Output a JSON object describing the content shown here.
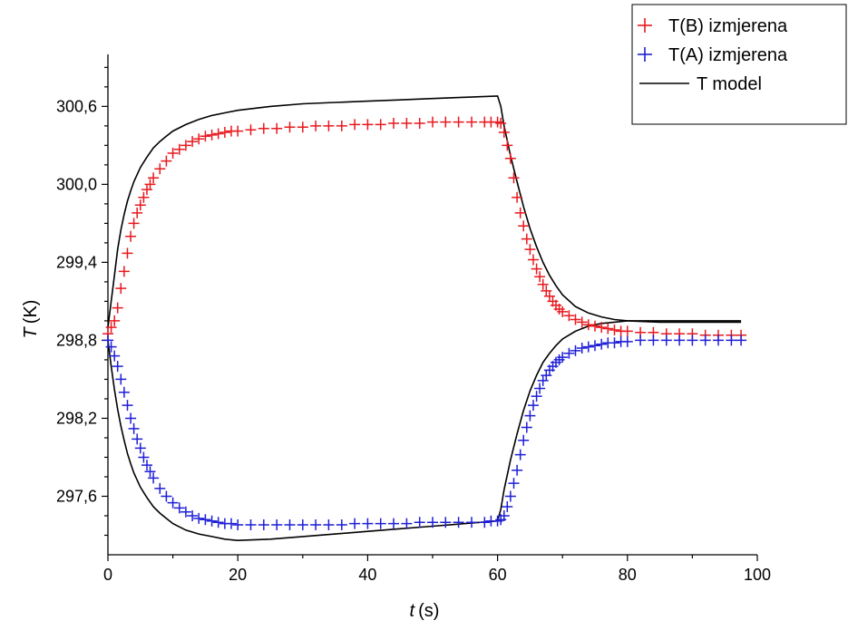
{
  "chart_data": {
    "type": "scatter",
    "title": "",
    "xlabel": {
      "symbol": "t",
      "unit": "(s)"
    },
    "ylabel": {
      "symbol": "T",
      "unit": "(K)"
    },
    "xlim": [
      0,
      100
    ],
    "ylim": [
      297.15,
      301.0
    ],
    "x_major_ticks": [
      0,
      20,
      40,
      60,
      80,
      100
    ],
    "x_tick_labels": [
      "0",
      "20",
      "40",
      "60",
      "80",
      "100"
    ],
    "y_major_ticks": [
      297.6,
      298.2,
      298.8,
      299.4,
      300.0,
      300.6
    ],
    "y_tick_labels": [
      "297,6",
      "298,2",
      "298,8",
      "299,4",
      "300,0",
      "300,6"
    ],
    "grid": false,
    "legend_position": "top-right",
    "series": [
      {
        "name": "T(B) izmjerena",
        "kind": "markers",
        "marker": "+",
        "color": "#e8191e",
        "x": [
          0.0,
          0.5,
          1.0,
          1.5,
          2.0,
          2.5,
          3.0,
          3.5,
          4.0,
          4.5,
          5.0,
          5.5,
          6.0,
          6.5,
          7.0,
          8.0,
          9.0,
          10.0,
          11.0,
          12.0,
          13.0,
          14.0,
          15.0,
          16.0,
          17.0,
          18.0,
          19.0,
          20.0,
          22.0,
          24.0,
          26.0,
          28.0,
          30.0,
          32.0,
          34.0,
          36.0,
          38.0,
          40.0,
          42.0,
          44.0,
          46.0,
          48.0,
          50.0,
          52.0,
          54.0,
          56.0,
          58.0,
          59.0,
          60.0,
          60.5,
          61.0,
          61.5,
          62.0,
          62.5,
          63.0,
          63.5,
          64.0,
          64.5,
          65.0,
          65.5,
          66.0,
          66.5,
          67.0,
          67.5,
          68.0,
          68.5,
          69.0,
          69.5,
          70.0,
          71.0,
          72.0,
          73.0,
          74.0,
          75.0,
          76.0,
          77.0,
          78.0,
          79.0,
          80.0,
          82.0,
          84.0,
          86.0,
          88.0,
          90.0,
          92.0,
          94.0,
          96.0,
          97.5
        ],
        "y": [
          298.85,
          298.9,
          298.95,
          299.05,
          299.2,
          299.33,
          299.47,
          299.6,
          299.7,
          299.78,
          299.84,
          299.9,
          299.96,
          300.0,
          300.05,
          300.12,
          300.18,
          300.24,
          300.27,
          300.3,
          300.33,
          300.35,
          300.37,
          300.38,
          300.39,
          300.4,
          300.41,
          300.41,
          300.42,
          300.43,
          300.43,
          300.44,
          300.44,
          300.45,
          300.45,
          300.45,
          300.46,
          300.46,
          300.46,
          300.47,
          300.47,
          300.47,
          300.48,
          300.48,
          300.48,
          300.48,
          300.48,
          300.48,
          300.48,
          300.47,
          300.4,
          300.3,
          300.2,
          300.05,
          299.9,
          299.78,
          299.68,
          299.58,
          299.5,
          299.42,
          299.35,
          299.29,
          299.23,
          299.18,
          299.14,
          299.1,
          299.07,
          299.04,
          299.02,
          298.99,
          298.96,
          298.94,
          298.92,
          298.91,
          298.9,
          298.89,
          298.88,
          298.87,
          298.87,
          298.86,
          298.86,
          298.85,
          298.85,
          298.85,
          298.84,
          298.84,
          298.84,
          298.84
        ]
      },
      {
        "name": "T(A) izmjerena",
        "kind": "markers",
        "marker": "+",
        "color": "#1f1fd6",
        "x": [
          0.0,
          0.5,
          1.0,
          1.5,
          2.0,
          2.5,
          3.0,
          3.5,
          4.0,
          4.5,
          5.0,
          5.5,
          6.0,
          6.5,
          7.0,
          8.0,
          9.0,
          10.0,
          11.0,
          12.0,
          13.0,
          14.0,
          15.0,
          16.0,
          17.0,
          18.0,
          19.0,
          20.0,
          22.0,
          24.0,
          26.0,
          28.0,
          30.0,
          32.0,
          34.0,
          36.0,
          38.0,
          40.0,
          42.0,
          44.0,
          46.0,
          48.0,
          50.0,
          52.0,
          54.0,
          56.0,
          58.0,
          59.0,
          60.0,
          60.5,
          61.0,
          61.5,
          62.0,
          62.5,
          63.0,
          63.5,
          64.0,
          64.5,
          65.0,
          65.5,
          66.0,
          66.5,
          67.0,
          67.5,
          68.0,
          68.5,
          69.0,
          69.5,
          70.0,
          71.0,
          72.0,
          73.0,
          74.0,
          75.0,
          76.0,
          77.0,
          78.0,
          79.0,
          80.0,
          82.0,
          84.0,
          86.0,
          88.0,
          90.0,
          92.0,
          94.0,
          96.0,
          97.5
        ],
        "y": [
          298.8,
          298.75,
          298.68,
          298.6,
          298.5,
          298.4,
          298.3,
          298.2,
          298.12,
          298.04,
          297.97,
          297.9,
          297.84,
          297.79,
          297.74,
          297.66,
          297.6,
          297.55,
          297.51,
          297.48,
          297.45,
          297.43,
          297.42,
          297.41,
          297.4,
          297.39,
          297.39,
          297.38,
          297.38,
          297.38,
          297.38,
          297.38,
          297.38,
          297.38,
          297.38,
          297.38,
          297.39,
          297.39,
          297.39,
          297.39,
          297.39,
          297.4,
          297.4,
          297.4,
          297.4,
          297.4,
          297.4,
          297.41,
          297.41,
          297.42,
          297.45,
          297.52,
          297.6,
          297.7,
          297.8,
          297.92,
          298.03,
          298.13,
          298.22,
          298.3,
          298.37,
          298.43,
          298.49,
          298.53,
          298.57,
          298.6,
          298.63,
          298.65,
          298.67,
          298.7,
          298.72,
          298.74,
          298.75,
          298.76,
          298.77,
          298.78,
          298.78,
          298.79,
          298.79,
          298.8,
          298.8,
          298.8,
          298.8,
          298.8,
          298.8,
          298.8,
          298.8,
          298.8
        ]
      },
      {
        "name": "T model",
        "kind": "line",
        "color": "#000000",
        "x": [
          0,
          0.5,
          1,
          1.5,
          2,
          2.5,
          3,
          3.5,
          4,
          5,
          6,
          7,
          8,
          9,
          10,
          12,
          14,
          16,
          18,
          20,
          25,
          30,
          35,
          40,
          45,
          50,
          55,
          60,
          60.5,
          61,
          62,
          63,
          64,
          65,
          66,
          67,
          68,
          69,
          70,
          72,
          74,
          76,
          78,
          80,
          85,
          90,
          95,
          97.5
        ],
        "y_upper": [
          298.9,
          299.1,
          299.3,
          299.5,
          299.65,
          299.77,
          299.87,
          299.95,
          300.02,
          300.13,
          300.21,
          300.28,
          300.33,
          300.37,
          300.41,
          300.46,
          300.5,
          300.53,
          300.55,
          300.57,
          300.6,
          300.62,
          300.63,
          300.64,
          300.65,
          300.66,
          300.67,
          300.68,
          300.6,
          300.45,
          300.22,
          300.02,
          299.83,
          299.66,
          299.52,
          299.4,
          299.3,
          299.22,
          299.15,
          299.06,
          299.01,
          298.98,
          298.96,
          298.95,
          298.94,
          298.94,
          298.94,
          298.94
        ],
        "y_lower": [
          298.8,
          298.6,
          298.42,
          298.27,
          298.14,
          298.03,
          297.93,
          297.85,
          297.78,
          297.67,
          297.59,
          297.52,
          297.47,
          297.43,
          297.39,
          297.34,
          297.31,
          297.29,
          297.27,
          297.26,
          297.27,
          297.29,
          297.31,
          297.33,
          297.35,
          297.37,
          297.39,
          297.41,
          297.5,
          297.65,
          297.88,
          298.08,
          298.26,
          298.41,
          298.53,
          298.63,
          298.7,
          298.76,
          298.81,
          298.87,
          298.91,
          298.93,
          298.94,
          298.95,
          298.95,
          298.95,
          298.95,
          298.95
        ]
      }
    ]
  },
  "legend": {
    "items": [
      {
        "label": "T(B) izmjerena",
        "symbol": "+",
        "color": "#e8191e"
      },
      {
        "label": "T(A) izmjerena",
        "symbol": "+",
        "color": "#1f1fd6"
      },
      {
        "label": "T model",
        "symbol": "line",
        "color": "#000000"
      }
    ]
  }
}
